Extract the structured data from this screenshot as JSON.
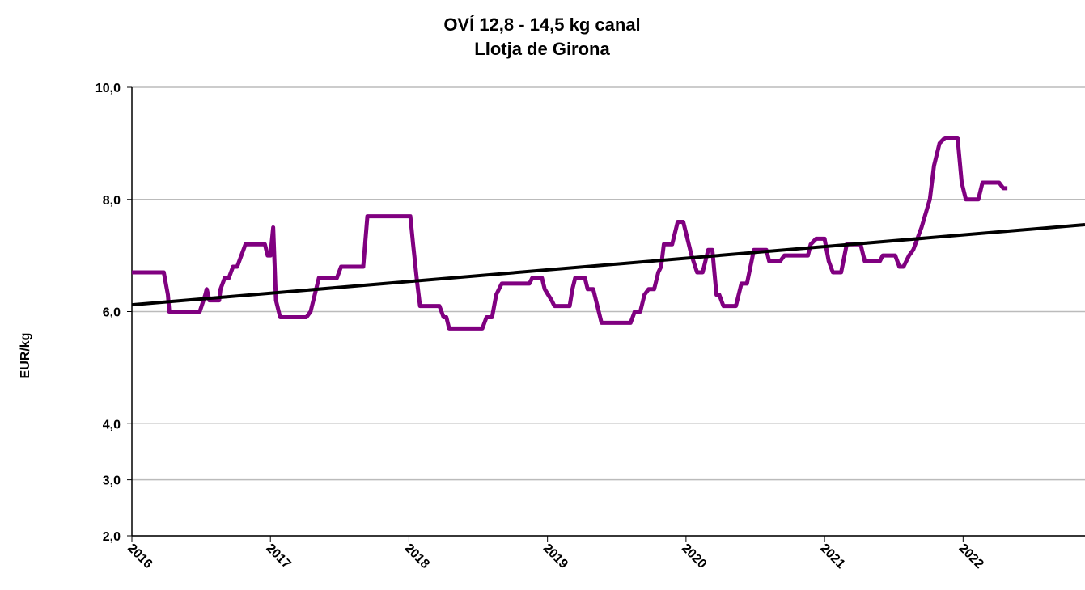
{
  "chart_data": {
    "type": "line",
    "title": "OVÍ 12,8 - 14,5 kg canal",
    "subtitle": "Llotja de Girona",
    "y_label": "EUR/kg",
    "xlim": [
      2016,
      2022.88
    ],
    "xticks": [
      2016,
      2017,
      2018,
      2019,
      2020,
      2021,
      2022
    ],
    "ylim": [
      2,
      10
    ],
    "yticks": [
      {
        "value": 2,
        "label": "2,0"
      },
      {
        "value": 3,
        "label": "3,0"
      },
      {
        "value": 4,
        "label": "4,0"
      },
      {
        "value": 6,
        "label": "6,0"
      },
      {
        "value": 8,
        "label": "8,0"
      },
      {
        "value": 10,
        "label": "10,0"
      }
    ],
    "grid": true,
    "series": [
      {
        "color": "#800080",
        "x": [
          2016.0,
          2016.23,
          2016.26,
          2016.27,
          2016.49,
          2016.53,
          2016.54,
          2016.56,
          2016.63,
          2016.64,
          2016.67,
          2016.7,
          2016.73,
          2016.76,
          2016.82,
          2016.96,
          2016.98,
          2017.0,
          2017.02,
          2017.04,
          2017.07,
          2017.26,
          2017.29,
          2017.33,
          2017.35,
          2017.48,
          2017.51,
          2017.67,
          2017.7,
          2018.01,
          2018.03,
          2018.06,
          2018.08,
          2018.22,
          2018.25,
          2018.27,
          2018.29,
          2018.53,
          2018.56,
          2018.6,
          2018.63,
          2018.67,
          2018.87,
          2018.89,
          2018.96,
          2018.98,
          2019.03,
          2019.05,
          2019.16,
          2019.18,
          2019.2,
          2019.27,
          2019.29,
          2019.33,
          2019.39,
          2019.6,
          2019.63,
          2019.67,
          2019.7,
          2019.73,
          2019.77,
          2019.8,
          2019.82,
          2019.84,
          2019.9,
          2019.94,
          2019.98,
          2020.04,
          2020.08,
          2020.12,
          2020.16,
          2020.19,
          2020.22,
          2020.24,
          2020.27,
          2020.36,
          2020.4,
          2020.44,
          2020.49,
          2020.58,
          2020.6,
          2020.68,
          2020.71,
          2020.88,
          2020.9,
          2020.94,
          2021.0,
          2021.03,
          2021.06,
          2021.12,
          2021.16,
          2021.26,
          2021.29,
          2021.4,
          2021.42,
          2021.51,
          2021.54,
          2021.57,
          2021.61,
          2021.64,
          2021.7,
          2021.76,
          2021.79,
          2021.83,
          2021.87,
          2021.96,
          2021.99,
          2022.02,
          2022.11,
          2022.14,
          2022.26,
          2022.29,
          2022.32
        ],
        "values": [
          6.7,
          6.7,
          6.3,
          6.0,
          6.0,
          6.3,
          6.4,
          6.2,
          6.2,
          6.4,
          6.6,
          6.6,
          6.8,
          6.8,
          7.2,
          7.2,
          7.0,
          7.0,
          7.5,
          6.2,
          5.9,
          5.9,
          6.0,
          6.4,
          6.6,
          6.6,
          6.8,
          6.8,
          7.7,
          7.7,
          7.2,
          6.5,
          6.1,
          6.1,
          5.9,
          5.9,
          5.7,
          5.7,
          5.9,
          5.9,
          6.3,
          6.5,
          6.5,
          6.6,
          6.6,
          6.4,
          6.2,
          6.1,
          6.1,
          6.4,
          6.6,
          6.6,
          6.4,
          6.4,
          5.8,
          5.8,
          6.0,
          6.0,
          6.3,
          6.4,
          6.4,
          6.7,
          6.8,
          7.2,
          7.2,
          7.6,
          7.6,
          7.0,
          6.7,
          6.7,
          7.1,
          7.1,
          6.3,
          6.3,
          6.1,
          6.1,
          6.5,
          6.5,
          7.1,
          7.1,
          6.9,
          6.9,
          7.0,
          7.0,
          7.2,
          7.3,
          7.3,
          6.9,
          6.7,
          6.7,
          7.2,
          7.2,
          6.9,
          6.9,
          7.0,
          7.0,
          6.8,
          6.8,
          7.0,
          7.1,
          7.5,
          8.0,
          8.6,
          9.0,
          9.1,
          9.1,
          8.3,
          8.0,
          8.0,
          8.3,
          8.3,
          8.2,
          8.2
        ]
      },
      {
        "color": "#000000",
        "x": [
          2016,
          2022.88
        ],
        "values": [
          6.12,
          7.55
        ]
      }
    ]
  }
}
